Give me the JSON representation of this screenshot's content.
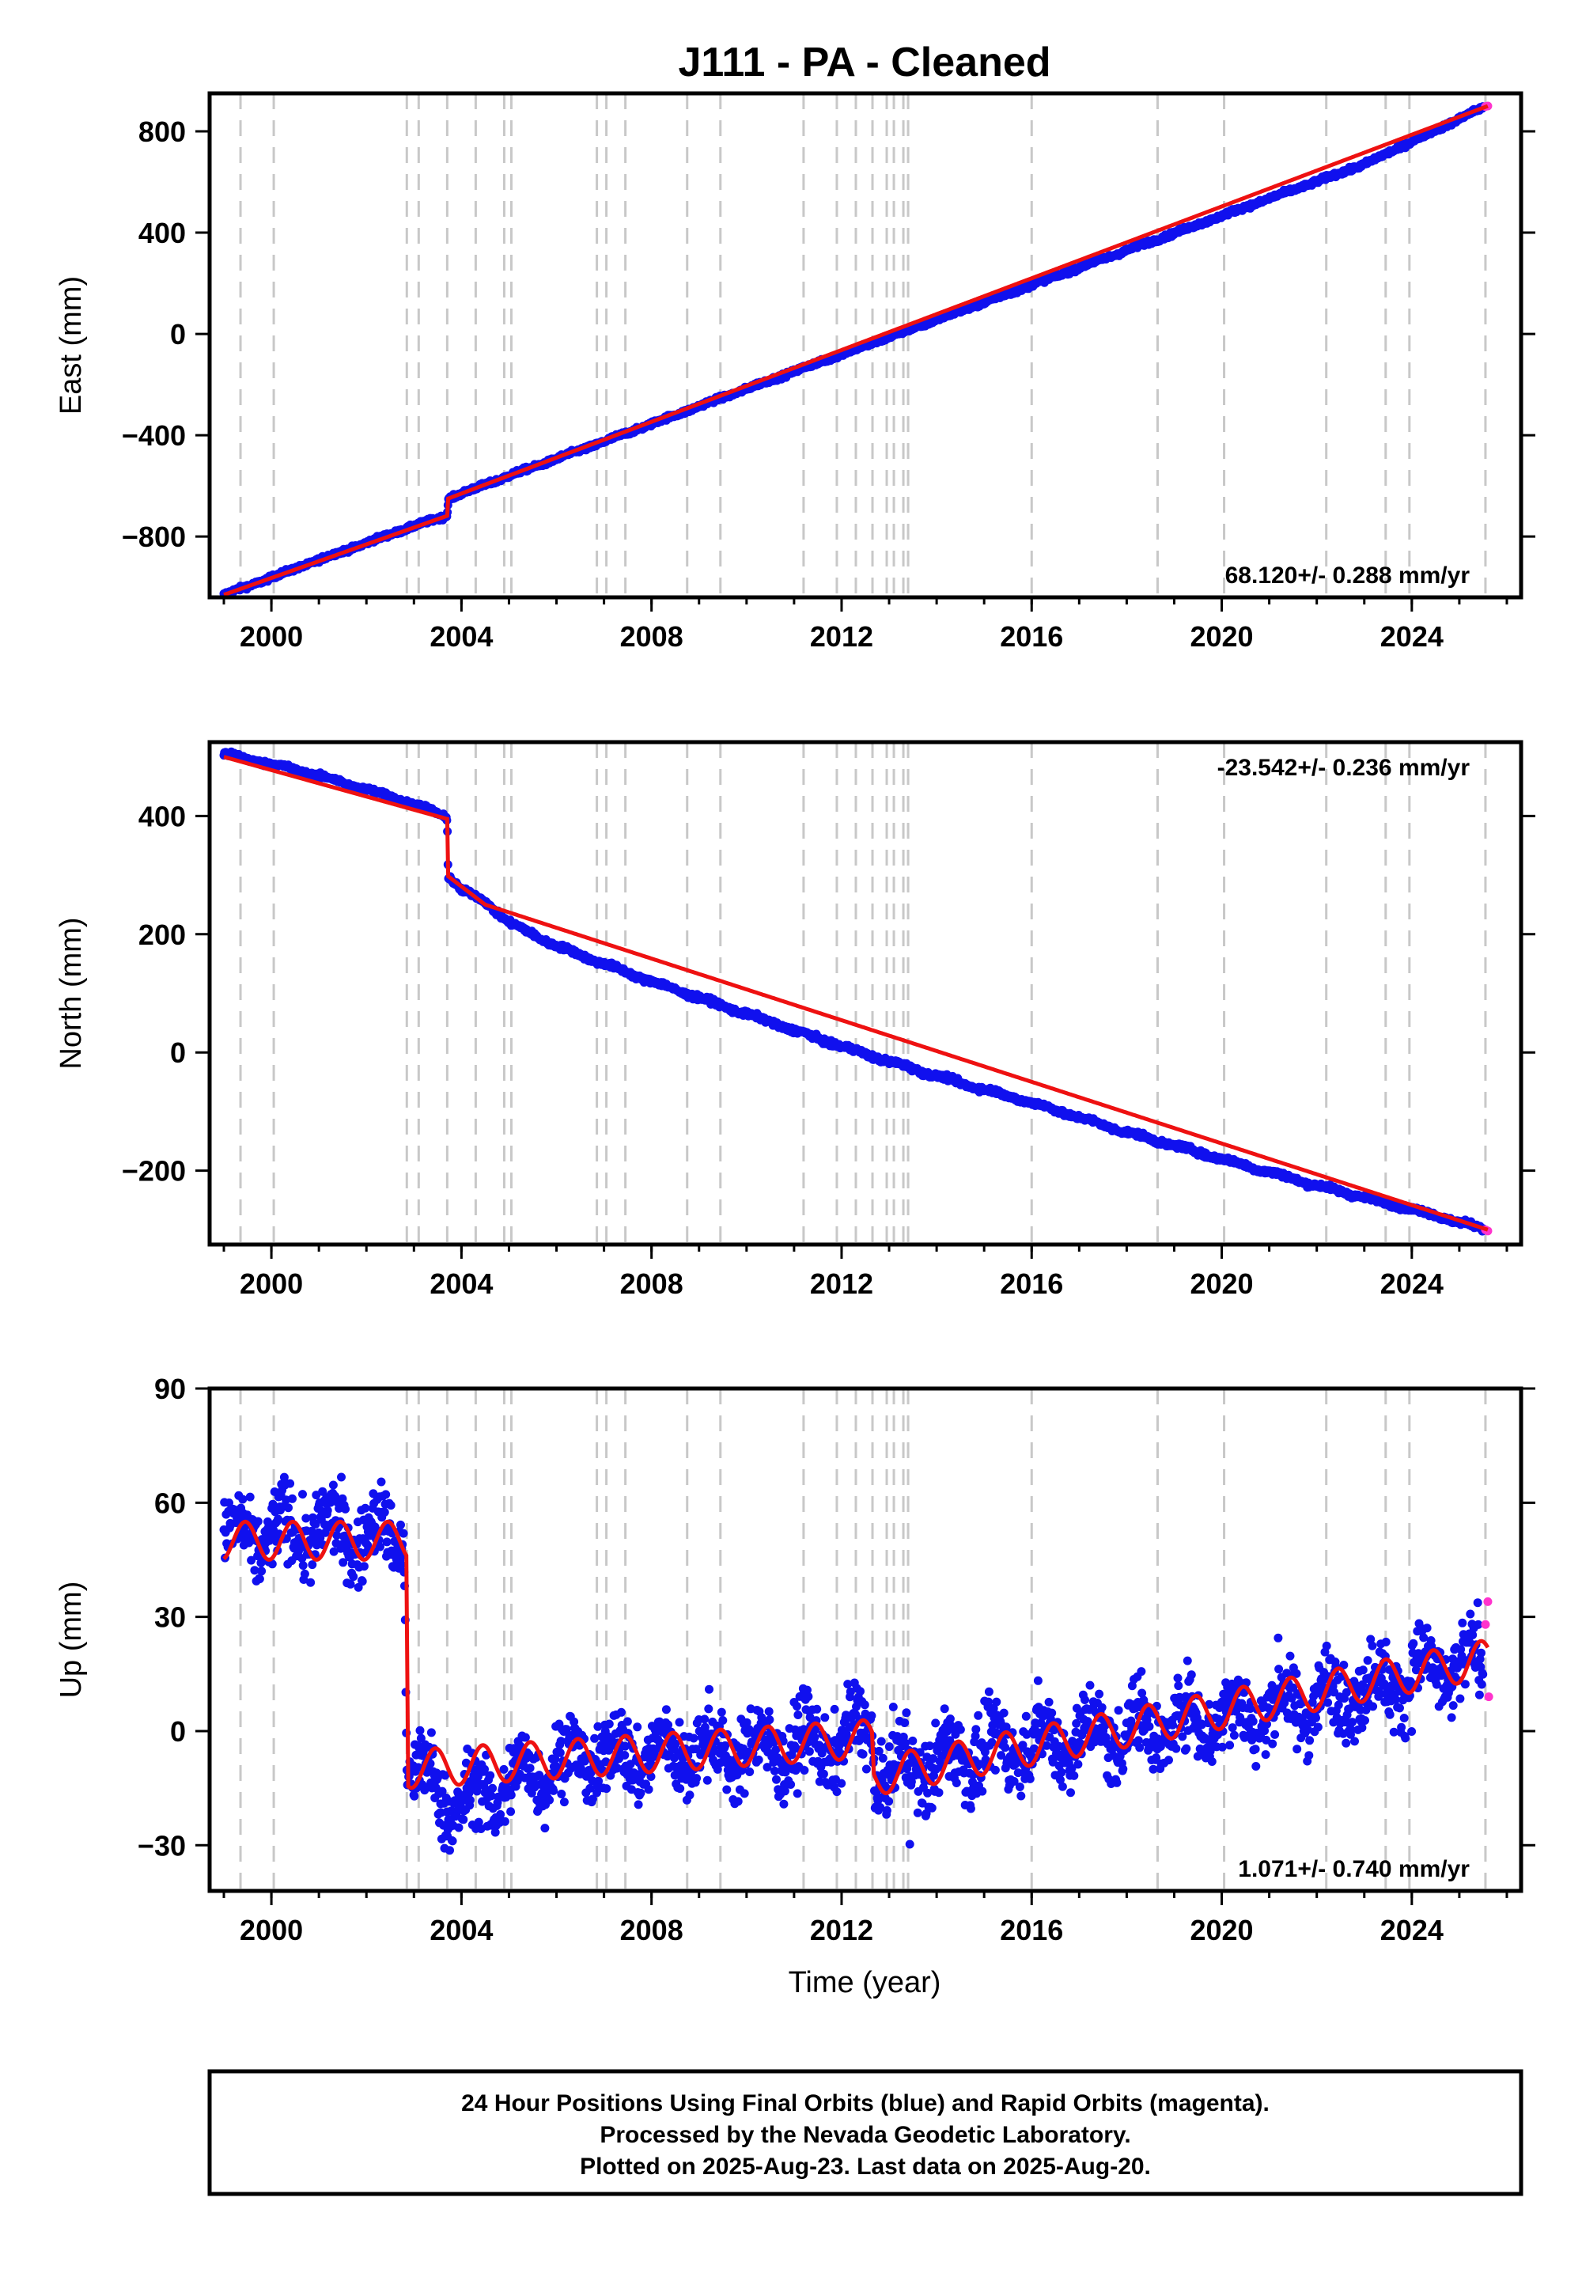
{
  "title": "J111  - PA - Cleaned",
  "colors": {
    "final_points": "#1010ee",
    "rapid_points": "#ff33cc",
    "model_line": "#ee1111",
    "event_lines": "#c8c8c8",
    "frame": "#000000"
  },
  "x_axis": {
    "label": "Time (year)",
    "range": [
      1998.7,
      2026.3
    ],
    "ticks": [
      2000,
      2004,
      2008,
      2012,
      2016,
      2020,
      2024
    ],
    "tick_labels": [
      "2000",
      "2004",
      "2008",
      "2012",
      "2016",
      "2020",
      "2024"
    ],
    "minor_tick_step": 1
  },
  "event_lines": [
    1999.35,
    2000.05,
    2002.85,
    2003.1,
    2003.7,
    2004.3,
    2004.9,
    2005.05,
    2006.85,
    2007.05,
    2007.45,
    2008.75,
    2009.45,
    2011.2,
    2011.9,
    2012.3,
    2012.65,
    2012.95,
    2013.1,
    2013.3,
    2013.4,
    2016.0,
    2018.65,
    2020.05,
    2022.2,
    2023.45,
    2023.95,
    2025.55
  ],
  "chart_data": [
    {
      "type": "scatter",
      "panel": "east",
      "ylabel": "East (mm)",
      "ylim": [
        -1040,
        950
      ],
      "yticks": [
        -800,
        -400,
        0,
        400,
        800
      ],
      "ytick_labels": [
        "−800",
        "−400",
        "0",
        "400",
        "800"
      ],
      "rate_text": "68.120+/- 0.288 mm/yr",
      "rate_position": "bottom-right",
      "series": [
        {
          "name": "Final Orbits (blue)",
          "x": [
            1999.0,
            2000.0,
            2001.0,
            2002.0,
            2003.0,
            2003.7,
            2003.72,
            2005.0,
            2007.0,
            2009.0,
            2011.0,
            2013.0,
            2015.0,
            2017.0,
            2019.0,
            2021.0,
            2023.0,
            2025.5
          ],
          "y": [
            -1030,
            -962,
            -892,
            -825,
            -758,
            -718,
            -650,
            -560,
            -425,
            -285,
            -148,
            -12,
            125,
            262,
            398,
            535,
            670,
            895
          ]
        },
        {
          "name": "Rapid Orbits (magenta)",
          "x": [
            2025.55,
            2025.6
          ],
          "y": [
            898,
            900
          ]
        },
        {
          "name": "Model",
          "x": [
            1999.0,
            2003.7,
            2003.72,
            2025.6
          ],
          "y": [
            -1030,
            -718,
            -650,
            900
          ]
        }
      ]
    },
    {
      "type": "scatter",
      "panel": "north",
      "ylabel": "North (mm)",
      "ylim": [
        -325,
        525
      ],
      "yticks": [
        -200,
        0,
        200,
        400
      ],
      "ytick_labels": [
        "−200",
        "0",
        "200",
        "400"
      ],
      "rate_text": "-23.542+/- 0.236 mm/yr",
      "rate_position": "top-right",
      "series": [
        {
          "name": "Final Orbits (blue)",
          "x": [
            1999.0,
            2000.0,
            2001.0,
            2002.0,
            2003.0,
            2003.7,
            2003.72,
            2004.0,
            2004.5,
            2005.0,
            2006.0,
            2008.0,
            2010.0,
            2012.0,
            2014.0,
            2016.0,
            2018.0,
            2020.0,
            2022.0,
            2024.0,
            2025.5
          ],
          "y": [
            505,
            488,
            468,
            445,
            420,
            398,
            300,
            275,
            255,
            220,
            180,
            120,
            65,
            10,
            -40,
            -85,
            -135,
            -180,
            -225,
            -265,
            -298
          ]
        },
        {
          "name": "Rapid Orbits (magenta)",
          "x": [
            2025.55,
            2025.6
          ],
          "y": [
            -300,
            -302
          ]
        },
        {
          "name": "Model",
          "x": [
            1999.0,
            2003.7,
            2003.72,
            2004.5,
            2025.6
          ],
          "y": [
            500,
            395,
            298,
            250,
            -300
          ]
        }
      ]
    },
    {
      "type": "scatter",
      "panel": "up",
      "ylabel": "Up (mm)",
      "ylim": [
        -42,
        90
      ],
      "yticks": [
        -30,
        0,
        30,
        60,
        90
      ],
      "ytick_labels": [
        "−30",
        "0",
        "30",
        "60",
        "90"
      ],
      "rate_text": "1.071+/- 0.740 mm/yr",
      "rate_position": "bottom-right",
      "series": [
        {
          "name": "Final Orbits (blue)",
          "x": [
            1999.0,
            2000.0,
            2001.0,
            2002.0,
            2002.8,
            2002.85,
            2004.0,
            2006.0,
            2008.0,
            2010.0,
            2012.0,
            2012.65,
            2012.7,
            2014.0,
            2016.0,
            2018.0,
            2020.0,
            2022.0,
            2024.0,
            2025.5
          ],
          "y": [
            50,
            52,
            53,
            51,
            52,
            -10,
            -20,
            -8,
            -6,
            -5,
            -3,
            2,
            -12,
            -8,
            -3,
            0,
            4,
            8,
            14,
            18
          ]
        },
        {
          "name": "Rapid Orbits (magenta)",
          "x": [
            2025.55,
            2025.6,
            2025.62
          ],
          "y": [
            28,
            34,
            9
          ]
        },
        {
          "name": "Model",
          "x": [
            1999.0,
            2002.85,
            2002.87,
            2012.65,
            2012.67,
            2025.6
          ],
          "y": [
            50,
            50,
            -10,
            -2,
            -12,
            19
          ]
        }
      ]
    }
  ],
  "footer": {
    "line1": "24 Hour Positions Using Final Orbits (blue) and Rapid Orbits (magenta).",
    "line2": "Processed by the Nevada Geodetic Laboratory.",
    "line3": "Plotted on 2025-Aug-23. Last data on 2025-Aug-20."
  }
}
